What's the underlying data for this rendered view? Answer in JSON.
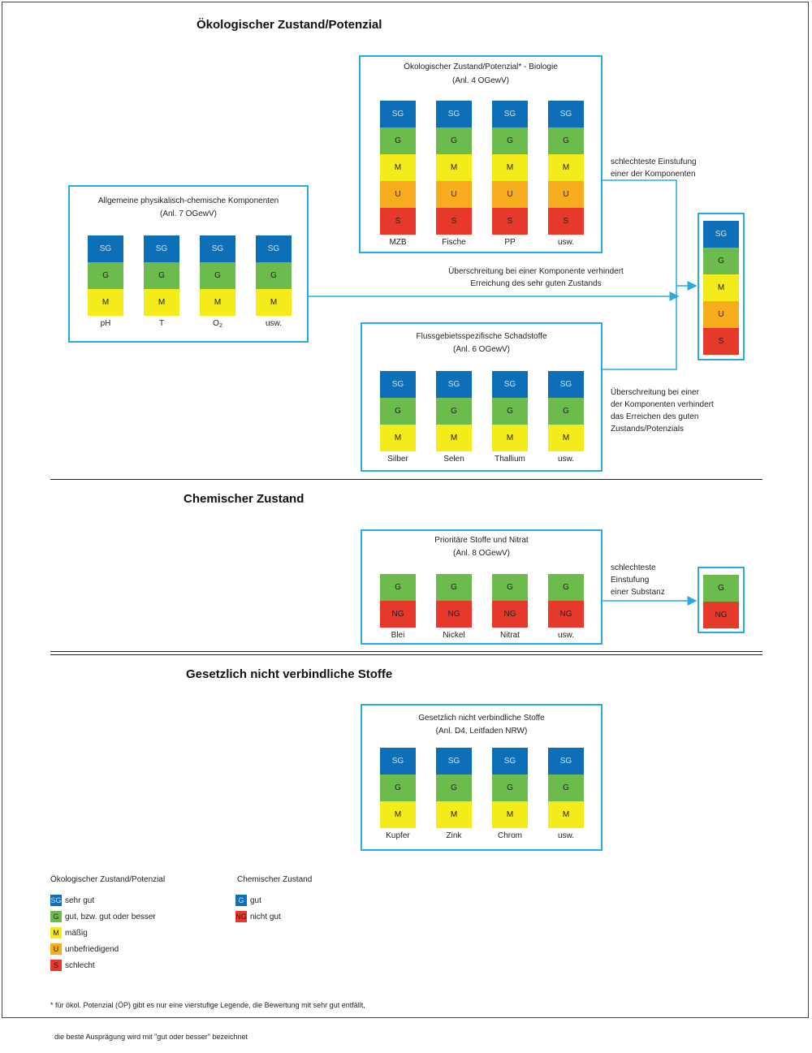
{
  "titles": {
    "oekologisch": "Ökologischer Zustand/Potenzial",
    "chemisch": "Chemischer Zustand",
    "gesetzlich": "Gesetzlich nicht verbindliche Stoffe"
  },
  "boxes": {
    "biologie": {
      "title1": "Ökologischer Zustand/Potenzial* - Biologie",
      "title2": "(Anl. 4 OGewV)",
      "columns": [
        {
          "label": "MZB",
          "cells": [
            "SG",
            "G",
            "M",
            "U",
            "S"
          ]
        },
        {
          "label": "Fische",
          "cells": [
            "SG",
            "G",
            "M",
            "U",
            "S"
          ]
        },
        {
          "label": "PP",
          "cells": [
            "SG",
            "G",
            "M",
            "U",
            "S"
          ]
        },
        {
          "label": "usw.",
          "cells": [
            "SG",
            "G",
            "M",
            "U",
            "S"
          ]
        }
      ]
    },
    "physchem": {
      "title1": "Allgemeine  physikalisch-chemische Komponenten",
      "title2": "(Anl. 7 OGewV)",
      "columns": [
        {
          "label": "pH",
          "cells": [
            "SG",
            "G",
            "M"
          ]
        },
        {
          "label": "T",
          "cells": [
            "SG",
            "G",
            "M"
          ]
        },
        {
          "label": "O",
          "sub": "2",
          "cells": [
            "SG",
            "G",
            "M"
          ]
        },
        {
          "label": "usw.",
          "cells": [
            "SG",
            "G",
            "M"
          ]
        }
      ]
    },
    "flussgebiet": {
      "title1": "Flussgebietsspezifische  Schadstoffe",
      "title2": "(Anl. 6 OGewV)",
      "columns": [
        {
          "label": "Silber",
          "cells": [
            "SG",
            "G",
            "M"
          ]
        },
        {
          "label": "Selen",
          "cells": [
            "SG",
            "G",
            "M"
          ]
        },
        {
          "label": "Thallium",
          "cells": [
            "SG",
            "G",
            "M"
          ]
        },
        {
          "label": "usw.",
          "cells": [
            "SG",
            "G",
            "M"
          ]
        }
      ]
    },
    "result_oeko": {
      "columns": [
        {
          "label": "",
          "cells": [
            "SG",
            "G",
            "M",
            "U",
            "S"
          ]
        }
      ]
    },
    "prioritaer": {
      "title1": "Prioritäre Stoffe und Nitrat",
      "title2": "(Anl. 8 OGewV)",
      "columns": [
        {
          "label": "Blei",
          "cells": [
            "G",
            "NG"
          ]
        },
        {
          "label": "Nickel",
          "cells": [
            "G",
            "NG"
          ]
        },
        {
          "label": "Nitrat",
          "cells": [
            "G",
            "NG"
          ]
        },
        {
          "label": "usw.",
          "cells": [
            "G",
            "NG"
          ]
        }
      ]
    },
    "result_chem": {
      "columns": [
        {
          "label": "",
          "cells": [
            "G",
            "NG"
          ]
        }
      ]
    },
    "nrw": {
      "title1": "Gesetzlich nicht verbindliche Stoffe",
      "title2": "(Anl. D4, Leitfaden NRW)",
      "columns": [
        {
          "label": "Kupfer",
          "cells": [
            "SG",
            "G",
            "M"
          ]
        },
        {
          "label": "Zink",
          "cells": [
            "SG",
            "G",
            "M"
          ]
        },
        {
          "label": "Chrom",
          "cells": [
            "SG",
            "G",
            "M"
          ]
        },
        {
          "label": "usw.",
          "cells": [
            "SG",
            "G",
            "M"
          ]
        }
      ]
    }
  },
  "notes": {
    "schlechteste1": "schlechteste Einstufung",
    "schlechteste2": "einer der Komponenten",
    "ueber1": "Überschreitung bei einer Komponente verhindert",
    "ueber2": "Erreichung des sehr guten Zustands",
    "ueberB1": "Überschreitung bei einer",
    "ueberB2": "der Komponenten verhindert",
    "ueberB3": "das Erreichen des guten",
    "ueberB4": "Zustands/Potenzials",
    "subst1": "schlechteste",
    "subst2": "Einstufung",
    "subst3": "einer Substanz"
  },
  "colors": {
    "SG": "#0e6fb9",
    "G": "#6cbb4d",
    "M": "#f3eb1a",
    "U": "#f7ac1e",
    "S": "#e6392b",
    "NG": "#e6392b",
    "arrow": "#29abe2"
  },
  "legend": {
    "oeko_title": "Ökologischer Zustand/Potenzial",
    "oeko": [
      {
        "code": "SG",
        "text": "sehr gut"
      },
      {
        "code": "G",
        "text": "gut, bzw. gut oder besser"
      },
      {
        "code": "M",
        "text": "mäßig"
      },
      {
        "code": "U",
        "text": "unbefriedigend"
      },
      {
        "code": "S",
        "text": "schlecht"
      }
    ],
    "chem_title": "Chemischer Zustand",
    "chem": [
      {
        "code": "G",
        "color_key": "SG",
        "text": "gut"
      },
      {
        "code": "NG",
        "text": "nicht gut"
      }
    ]
  },
  "footnote": {
    "line1": "* für ökol. Potenzial (ÖP) gibt es nur eine vierstufige Legende, die Bewertung mit sehr gut entfällt,",
    "line2": "  die beste Ausprägung wird mit \"gut oder besser\" bezeichnet"
  }
}
